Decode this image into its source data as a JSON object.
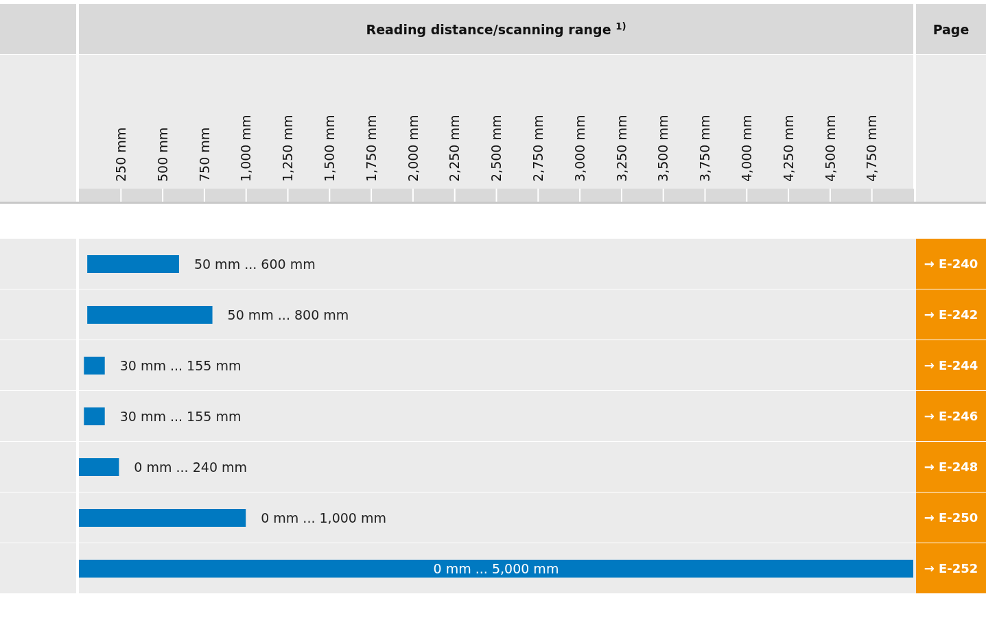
{
  "chart_data": {
    "type": "bar",
    "orientation": "horizontal",
    "title": "Reading distance/scanning range $^{1)}$",
    "categories": [
      null,
      null,
      null,
      null,
      null,
      null,
      null
    ],
    "base": [
      50,
      50,
      30,
      30,
      0,
      0,
      0
    ],
    "values": [
      550,
      750,
      125,
      125,
      240,
      1000,
      5000
    ],
    "color": "#0079c1",
    "xlim": [
      0,
      5000
    ],
    "xticks": [
      {
        "value": 250,
        "label": "250 mm"
      },
      {
        "value": 500,
        "label": "500 mm"
      },
      {
        "value": 750,
        "label": "750 mm"
      },
      {
        "value": 1000,
        "label": "1,000 mm"
      },
      {
        "value": 1250,
        "label": "1,250 mm"
      },
      {
        "value": 1500,
        "label": "1,500 mm"
      },
      {
        "value": 1750,
        "label": "1,750 mm"
      },
      {
        "value": 2000,
        "label": "2,000 mm"
      },
      {
        "value": 2250,
        "label": "2,250 mm"
      },
      {
        "value": 2500,
        "label": "2,500 mm"
      },
      {
        "value": 2750,
        "label": "2,750 mm"
      },
      {
        "value": 3000,
        "label": "3,000 mm"
      },
      {
        "value": 3250,
        "label": "3,250 mm"
      },
      {
        "value": 3500,
        "label": "3,500 mm"
      },
      {
        "value": 3750,
        "label": "3,750 mm"
      },
      {
        "value": 4000,
        "label": "4,000 mm"
      },
      {
        "value": 4250,
        "label": "4,250 mm"
      },
      {
        "value": 4500,
        "label": "4,500 mm"
      },
      {
        "value": 4750,
        "label": "4,750 mm"
      }
    ],
    "grid": false,
    "annotations": [
      "Page",
      "→ E-240",
      "→ E-242",
      "→ E-244",
      "→ E-246",
      "→ E-248",
      "→ E-250",
      "→ E-252",
      {
        "text": "50 mm ... 600 mm",
        "x": 600
      },
      {
        "text": "50 mm ... 800 mm",
        "x": 800
      },
      {
        "text": "30 mm ... 155 mm",
        "x": 155
      },
      {
        "text": "30 mm ... 155 mm",
        "x": 155
      },
      {
        "text": "0 mm ... 240 mm",
        "x": 240
      },
      {
        "text": "0 mm ... 1,000 mm",
        "x": 1000
      },
      "0 mm ... 5,000 mm"
    ]
  }
}
